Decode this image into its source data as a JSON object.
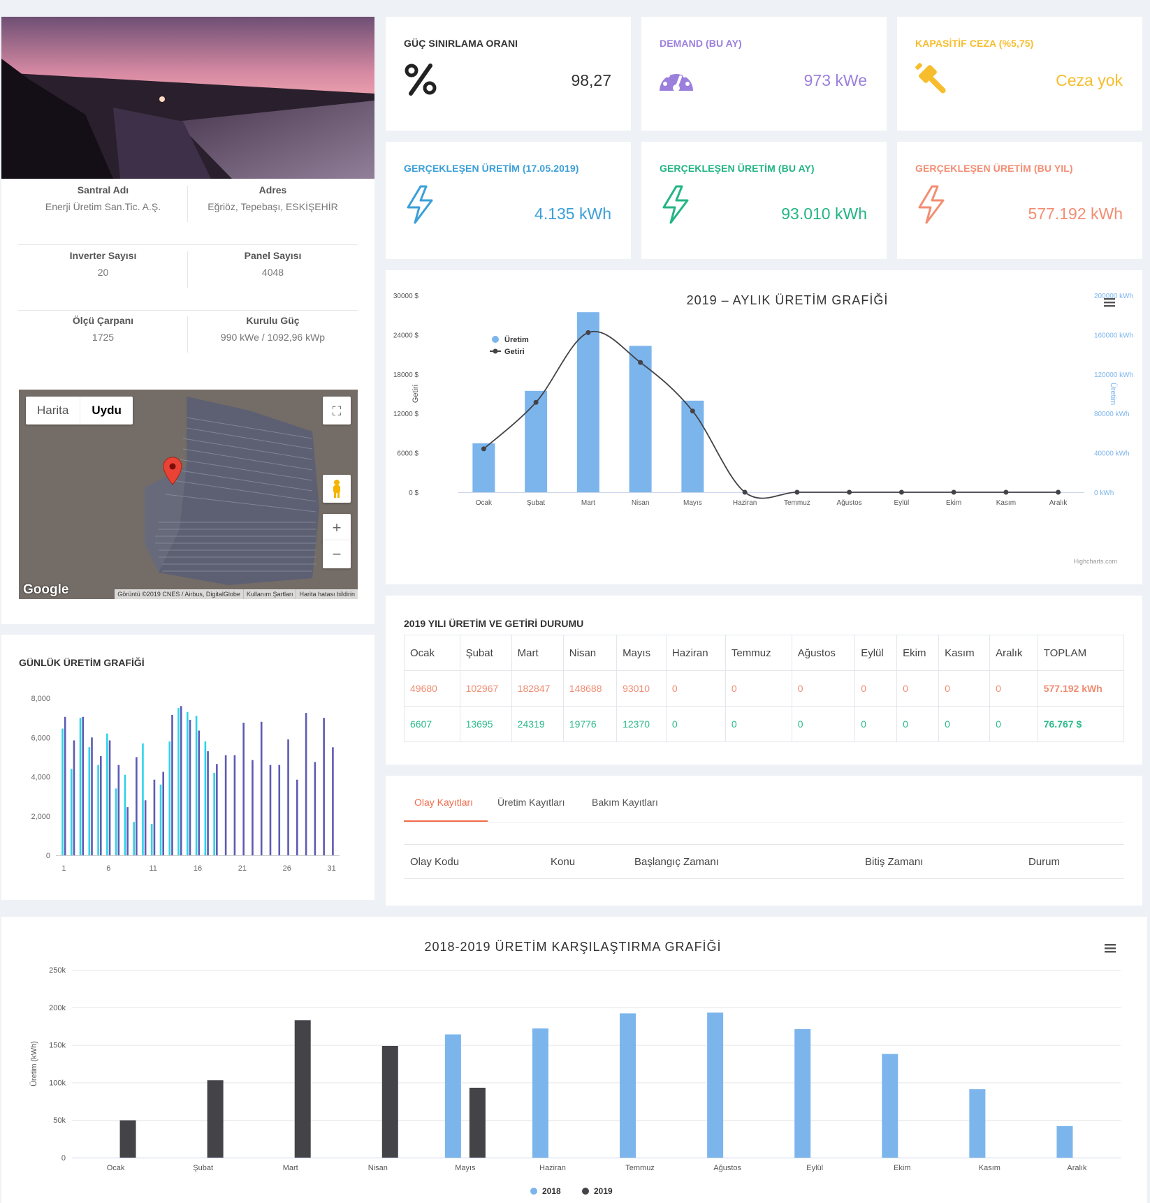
{
  "plant": {
    "fields": [
      {
        "label": "Santral Adı",
        "value": "Enerji Üretim San.Tic. A.Ş."
      },
      {
        "label": "Adres",
        "value": "Eğriöz, Tepebaşı, ESKİŞEHİR"
      },
      {
        "label": "Inverter Sayısı",
        "value": "20"
      },
      {
        "label": "Panel Sayısı",
        "value": "4048"
      },
      {
        "label": "Ölçü Çarpanı",
        "value": "1725"
      },
      {
        "label": "Kurulu Güç",
        "value": "990 kWe / 1092,96 kWp"
      }
    ]
  },
  "map": {
    "type_buttons": [
      "Harita",
      "Uydu"
    ],
    "brand": "Google",
    "footer": [
      "Görüntü ©2019 CNES / Airbus, DigitalGlobe",
      "Kullanım Şartları",
      "Harita hatası bildirin"
    ],
    "zoom_in": "+",
    "zoom_out": "−"
  },
  "kpis": [
    {
      "title": "GÜÇ SINIRLAMA ORANI",
      "value": "98,27",
      "color": "#333333",
      "icon": "percent-icon"
    },
    {
      "title": "DEMAND (BU AY)",
      "value": "973 kWe",
      "color": "#9b7fdc",
      "icon": "gauge-icon"
    },
    {
      "title": "KAPASİTİF CEZA (%5,75)",
      "value": "Ceza yok",
      "color": "#f7bd2c",
      "icon": "gavel-icon"
    },
    {
      "title": "GERÇEKLEŞEN ÜRETİM (17.05.2019)",
      "value": "4.135 kWh",
      "color": "#3b9fd8",
      "icon": "bolt-icon"
    },
    {
      "title": "GERÇEKLEŞEN ÜRETİM (BU AY)",
      "value": "93.010 kWh",
      "color": "#22b583",
      "icon": "bolt-icon"
    },
    {
      "title": "GERÇEKLEŞEN ÜRETİM (BU YIL)",
      "value": "577.192 kWh",
      "color": "#f38d73",
      "icon": "bolt-icon"
    }
  ],
  "monthly_chart": {
    "title": "2019 – AYLIK ÜRETİM GRAFİĞİ",
    "credit": "Highcharts.com",
    "menu_icon": "hamburger-icon"
  },
  "daily_chart": {
    "title": "GÜNLÜK ÜRETİM GRAFİĞİ"
  },
  "production_table": {
    "title": "2019 YILI ÜRETİM VE GETİRİ DURUMU",
    "headers": [
      "Ocak",
      "Şubat",
      "Mart",
      "Nisan",
      "Mayıs",
      "Haziran",
      "Temmuz",
      "Ağustos",
      "Eylül",
      "Ekim",
      "Kasım",
      "Aralık",
      "TOPLAM"
    ],
    "kwh": [
      "49680",
      "102967",
      "182847",
      "148688",
      "93010",
      "0",
      "0",
      "0",
      "0",
      "0",
      "0",
      "0",
      "577.192 kWh"
    ],
    "usd": [
      "6607",
      "13695",
      "24319",
      "19776",
      "12370",
      "0",
      "0",
      "0",
      "0",
      "0",
      "0",
      "0",
      "76.767 $"
    ]
  },
  "logs": {
    "tabs": [
      "Olay Kayıtları",
      "Üretim Kayıtları",
      "Bakım Kayıtları"
    ],
    "columns": [
      "Olay Kodu",
      "Konu",
      "Başlangıç Zamanı",
      "Bitiş Zamanı",
      "Durum"
    ]
  },
  "comparison_chart": {
    "title": "2018-2019 ÜRETİM KARŞILAŞTIRMA GRAFİĞİ",
    "menu_icon": "hamburger-icon"
  },
  "chart_data": [
    {
      "id": "monthly",
      "type": "bar",
      "title": "2019 – AYLIK ÜRETİM GRAFİĞİ",
      "categories": [
        "Ocak",
        "Şubat",
        "Mart",
        "Nisan",
        "Mayıs",
        "Haziran",
        "Temmuz",
        "Ağustos",
        "Eylül",
        "Ekim",
        "Kasım",
        "Aralık"
      ],
      "series": [
        {
          "name": "Üretim",
          "type": "bar",
          "axis": "right",
          "color": "#7cb5ec",
          "values": [
            49680,
            102967,
            182847,
            148688,
            93010,
            0,
            0,
            0,
            0,
            0,
            0,
            0
          ]
        },
        {
          "name": "Getiri",
          "type": "line",
          "axis": "left",
          "color": "#434348",
          "values": [
            6607,
            13695,
            24319,
            19776,
            12370,
            0,
            0,
            0,
            0,
            0,
            0,
            0
          ]
        }
      ],
      "ylabel_left": "Getiri",
      "ylabel_right": "Üretim",
      "yticks_left": [
        "0 $",
        "6000 $",
        "12000 $",
        "18000 $",
        "24000 $",
        "30000 $"
      ],
      "yticks_right": [
        "0 kWh",
        "40000 kWh",
        "80000 kWh",
        "120000 kWh",
        "160000 kWh",
        "200000 kWh"
      ],
      "ylim_left": [
        0,
        30000
      ],
      "ylim_right": [
        0,
        200000
      ],
      "legend": "top-left"
    },
    {
      "id": "daily",
      "type": "bar",
      "title": "GÜNLÜK ÜRETİM GRAFİĞİ",
      "x_ticks": [
        "1",
        "6",
        "11",
        "16",
        "21",
        "26",
        "31"
      ],
      "y_ticks": [
        "0",
        "2,000",
        "4,000",
        "6,000",
        "8,000"
      ],
      "ylim": [
        0,
        8000
      ],
      "series": [
        {
          "name": "",
          "color": "#2fd3ea",
          "values": [
            6450,
            4400,
            7000,
            5500,
            4600,
            6200,
            3400,
            4100,
            1700,
            5700,
            1600,
            3600,
            5800,
            7500,
            7300,
            7100,
            5800,
            4200
          ]
        },
        {
          "name": "",
          "color": "#5d5bb3",
          "values": [
            7050,
            5850,
            7050,
            6000,
            5050,
            5850,
            4600,
            2450,
            5000,
            2800,
            3850,
            4250,
            7150,
            7600,
            6900,
            6350,
            5300,
            4650,
            5100,
            5100,
            6750,
            4850,
            6800,
            4600,
            4600,
            5900,
            3850,
            7250,
            4750,
            7000,
            5500
          ]
        }
      ]
    },
    {
      "id": "comparison",
      "type": "bar",
      "title": "2018-2019 ÜRETİM KARŞILAŞTIRMA GRAFİĞİ",
      "categories": [
        "Ocak",
        "Şubat",
        "Mart",
        "Nisan",
        "Mayıs",
        "Haziran",
        "Temmuz",
        "Ağustos",
        "Eylül",
        "Ekim",
        "Kasım",
        "Aralık"
      ],
      "series": [
        {
          "name": "2018",
          "color": "#7cb5ec",
          "values": [
            0,
            0,
            0,
            0,
            164000,
            172000,
            192000,
            193000,
            171000,
            138000,
            91000,
            42000
          ]
        },
        {
          "name": "2019",
          "color": "#434348",
          "values": [
            49680,
            102967,
            182847,
            148688,
            93010,
            0,
            0,
            0,
            0,
            0,
            0,
            0
          ]
        }
      ],
      "ylabel": "Üretim (kWh)",
      "y_ticks": [
        "0",
        "50k",
        "100k",
        "150k",
        "200k",
        "250k"
      ],
      "ylim": [
        0,
        250000
      ],
      "legend": "bottom-center"
    }
  ]
}
